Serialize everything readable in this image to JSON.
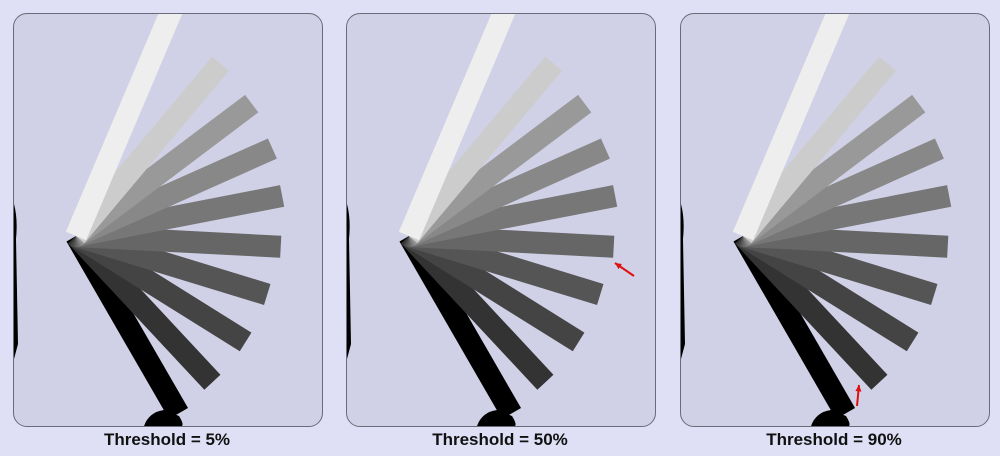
{
  "panels": [
    {
      "label": "Threshold = 5%",
      "arrow": false
    },
    {
      "label": "Threshold = 50%",
      "arrow": "right-bar-tip"
    },
    {
      "label": "Threshold = 90%",
      "arrow": "lower-bar-tip"
    }
  ],
  "colors": {
    "background": "#dfe0f5",
    "panel": "#d0d1e6",
    "arrow": "#e01010"
  }
}
